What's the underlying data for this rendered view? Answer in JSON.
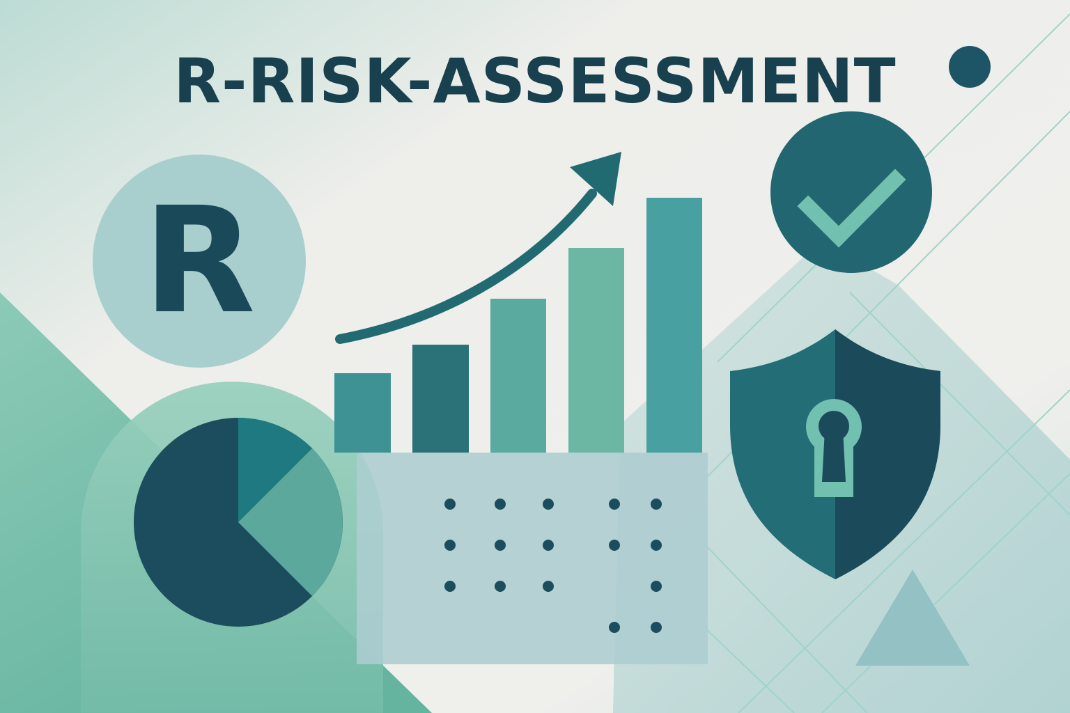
{
  "title": "R-RISK-ASSESSMENT",
  "badge_letter": "R",
  "bar_chart": {
    "bars": 5,
    "trend": "up"
  },
  "pie_chart": {
    "slices": 3
  },
  "icons": [
    "r-badge-icon",
    "trend-arrow-icon",
    "pie-chart-icon",
    "checkmark-icon",
    "shield-keyhole-icon",
    "dot-grid-icon",
    "triangle-icon"
  ],
  "colors": {
    "background": "#eeeeeb",
    "dark_teal": "#1a4a5a",
    "teal": "#236e76",
    "mid_teal": "#3f9596",
    "light_teal": "#6bb6a6",
    "pale_teal": "#a9cfd0",
    "mint": "#8cc8b4"
  }
}
